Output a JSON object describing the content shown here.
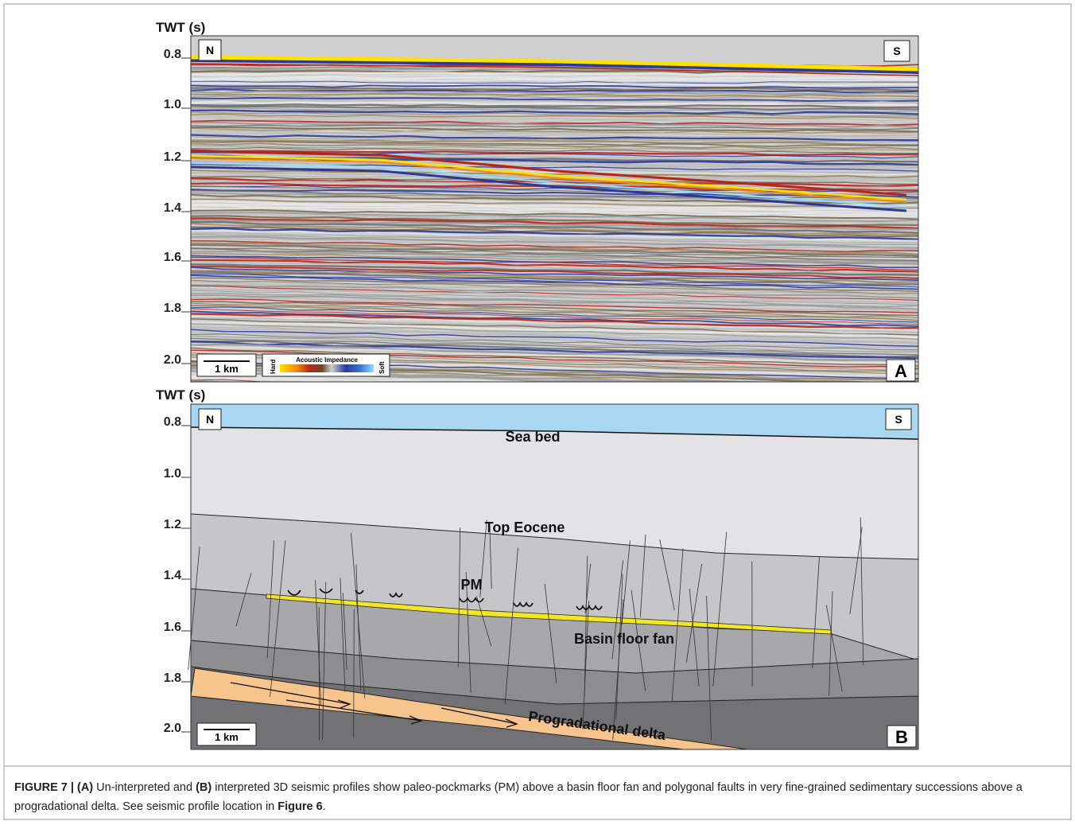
{
  "panel_a": {
    "axis_title": "TWT (s)",
    "ticks": [
      "0.8",
      "1.0",
      "1.2",
      "1.4",
      "1.6",
      "1.8",
      "2.0"
    ],
    "north": "N",
    "south": "S",
    "scale_bar": "1 km",
    "colorbar": {
      "title": "Acoustic Impedance",
      "low": "Hard",
      "high": "Soft"
    },
    "label": "A"
  },
  "panel_b": {
    "axis_title": "TWT (s)",
    "ticks": [
      "0.8",
      "1.0",
      "1.2",
      "1.4",
      "1.6",
      "1.8",
      "2.0"
    ],
    "north": "N",
    "south": "S",
    "scale_bar": "1 km",
    "annotations": {
      "sea_bed": "Sea bed",
      "top_eocene": "Top Eocene",
      "pockmarks": "PM",
      "fan": "Basin floor fan",
      "delta": "Progradational delta"
    },
    "label": "B"
  },
  "caption": {
    "figure": "FIGURE 7 | (A)",
    "text1": " Un-interpreted and ",
    "panel_b": "(B)",
    "text2": " interpreted 3D seismic profiles show paleo-pockmarks (PM) above a basin floor fan and polygonal faults in very fine-grained sedimentary successions above a progradational delta. See seismic profile location in ",
    "ref": "Figure 6",
    "end": "."
  }
}
